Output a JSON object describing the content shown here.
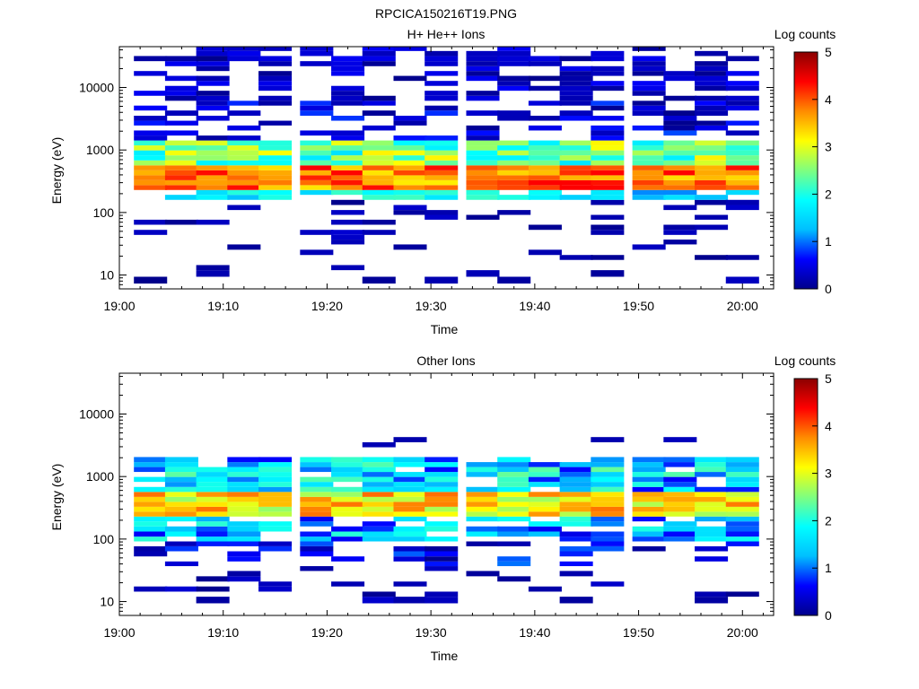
{
  "title": "RPCICA150216T19.PNG",
  "colormap": {
    "stops": [
      "#00008b",
      "#0000ff",
      "#00bfff",
      "#00ffff",
      "#7fff7f",
      "#ffff00",
      "#ff8c00",
      "#ff0000",
      "#8b0000"
    ],
    "empty_color": "#ffffff"
  },
  "chart_data": [
    {
      "type": "heatmap",
      "title": "H+ He++ Ions",
      "xlabel": "Time",
      "ylabel": "Energy (eV)",
      "colorbar_label": "Log counts",
      "colorbar_ticks": [
        "0",
        "1",
        "2",
        "3",
        "4",
        "5"
      ],
      "clim": [
        0,
        5
      ],
      "xlim": [
        "19:00",
        "20:03"
      ],
      "x_ticks": [
        "19:00",
        "19:10",
        "19:20",
        "19:30",
        "19:40",
        "19:50",
        "20:00"
      ],
      "ylim": [
        6,
        45000
      ],
      "y_scale": "log",
      "y_ticks": [
        "10",
        "100",
        "1000",
        "10000"
      ],
      "time_columns": [
        "19:03",
        "19:06",
        "19:09",
        "19:12",
        "19:15",
        "19:19",
        "19:22",
        "19:25",
        "19:28",
        "19:31",
        "19:35",
        "19:38",
        "19:41",
        "19:44",
        "19:47",
        "19:51",
        "19:54",
        "19:57",
        "20:00"
      ],
      "energy_rows_eV": [
        8,
        11,
        13,
        16,
        19,
        23,
        28,
        34,
        40,
        48,
        58,
        70,
        84,
        100,
        120,
        145,
        175,
        210,
        250,
        300,
        360,
        430,
        520,
        620,
        750,
        900,
        1080,
        1300,
        1550,
        1870,
        2250,
        2700,
        3200,
        3900,
        4700,
        5600,
        6700,
        8100,
        9700,
        11600,
        14000,
        16800,
        20000,
        24000,
        29000,
        35000,
        42000
      ],
      "grid": false
    },
    {
      "type": "heatmap",
      "title": "Other Ions",
      "xlabel": "Time",
      "ylabel": "Energy (eV)",
      "colorbar_label": "Log counts",
      "colorbar_ticks": [
        "0",
        "1",
        "2",
        "3",
        "4",
        "5"
      ],
      "clim": [
        0,
        5
      ],
      "xlim": [
        "19:00",
        "20:03"
      ],
      "x_ticks": [
        "19:00",
        "19:10",
        "19:20",
        "19:30",
        "19:40",
        "19:50",
        "20:00"
      ],
      "ylim": [
        6,
        45000
      ],
      "y_scale": "log",
      "y_ticks": [
        "10",
        "100",
        "1000",
        "10000"
      ],
      "time_columns": [
        "19:03",
        "19:06",
        "19:09",
        "19:12",
        "19:15",
        "19:19",
        "19:22",
        "19:25",
        "19:28",
        "19:31",
        "19:35",
        "19:38",
        "19:41",
        "19:44",
        "19:47",
        "19:51",
        "19:54",
        "19:57",
        "20:00"
      ],
      "energy_rows_eV": [
        8,
        11,
        13,
        16,
        19,
        23,
        28,
        34,
        40,
        48,
        58,
        70,
        84,
        100,
        120,
        145,
        175,
        210,
        250,
        300,
        360,
        430,
        520,
        620,
        750,
        900,
        1080,
        1300,
        1550,
        1870,
        2250,
        2700,
        3200,
        3900,
        4700,
        5600,
        6700,
        8100,
        9700,
        11600,
        14000,
        16800,
        20000,
        24000,
        29000,
        35000,
        42000
      ],
      "grid": false
    }
  ]
}
